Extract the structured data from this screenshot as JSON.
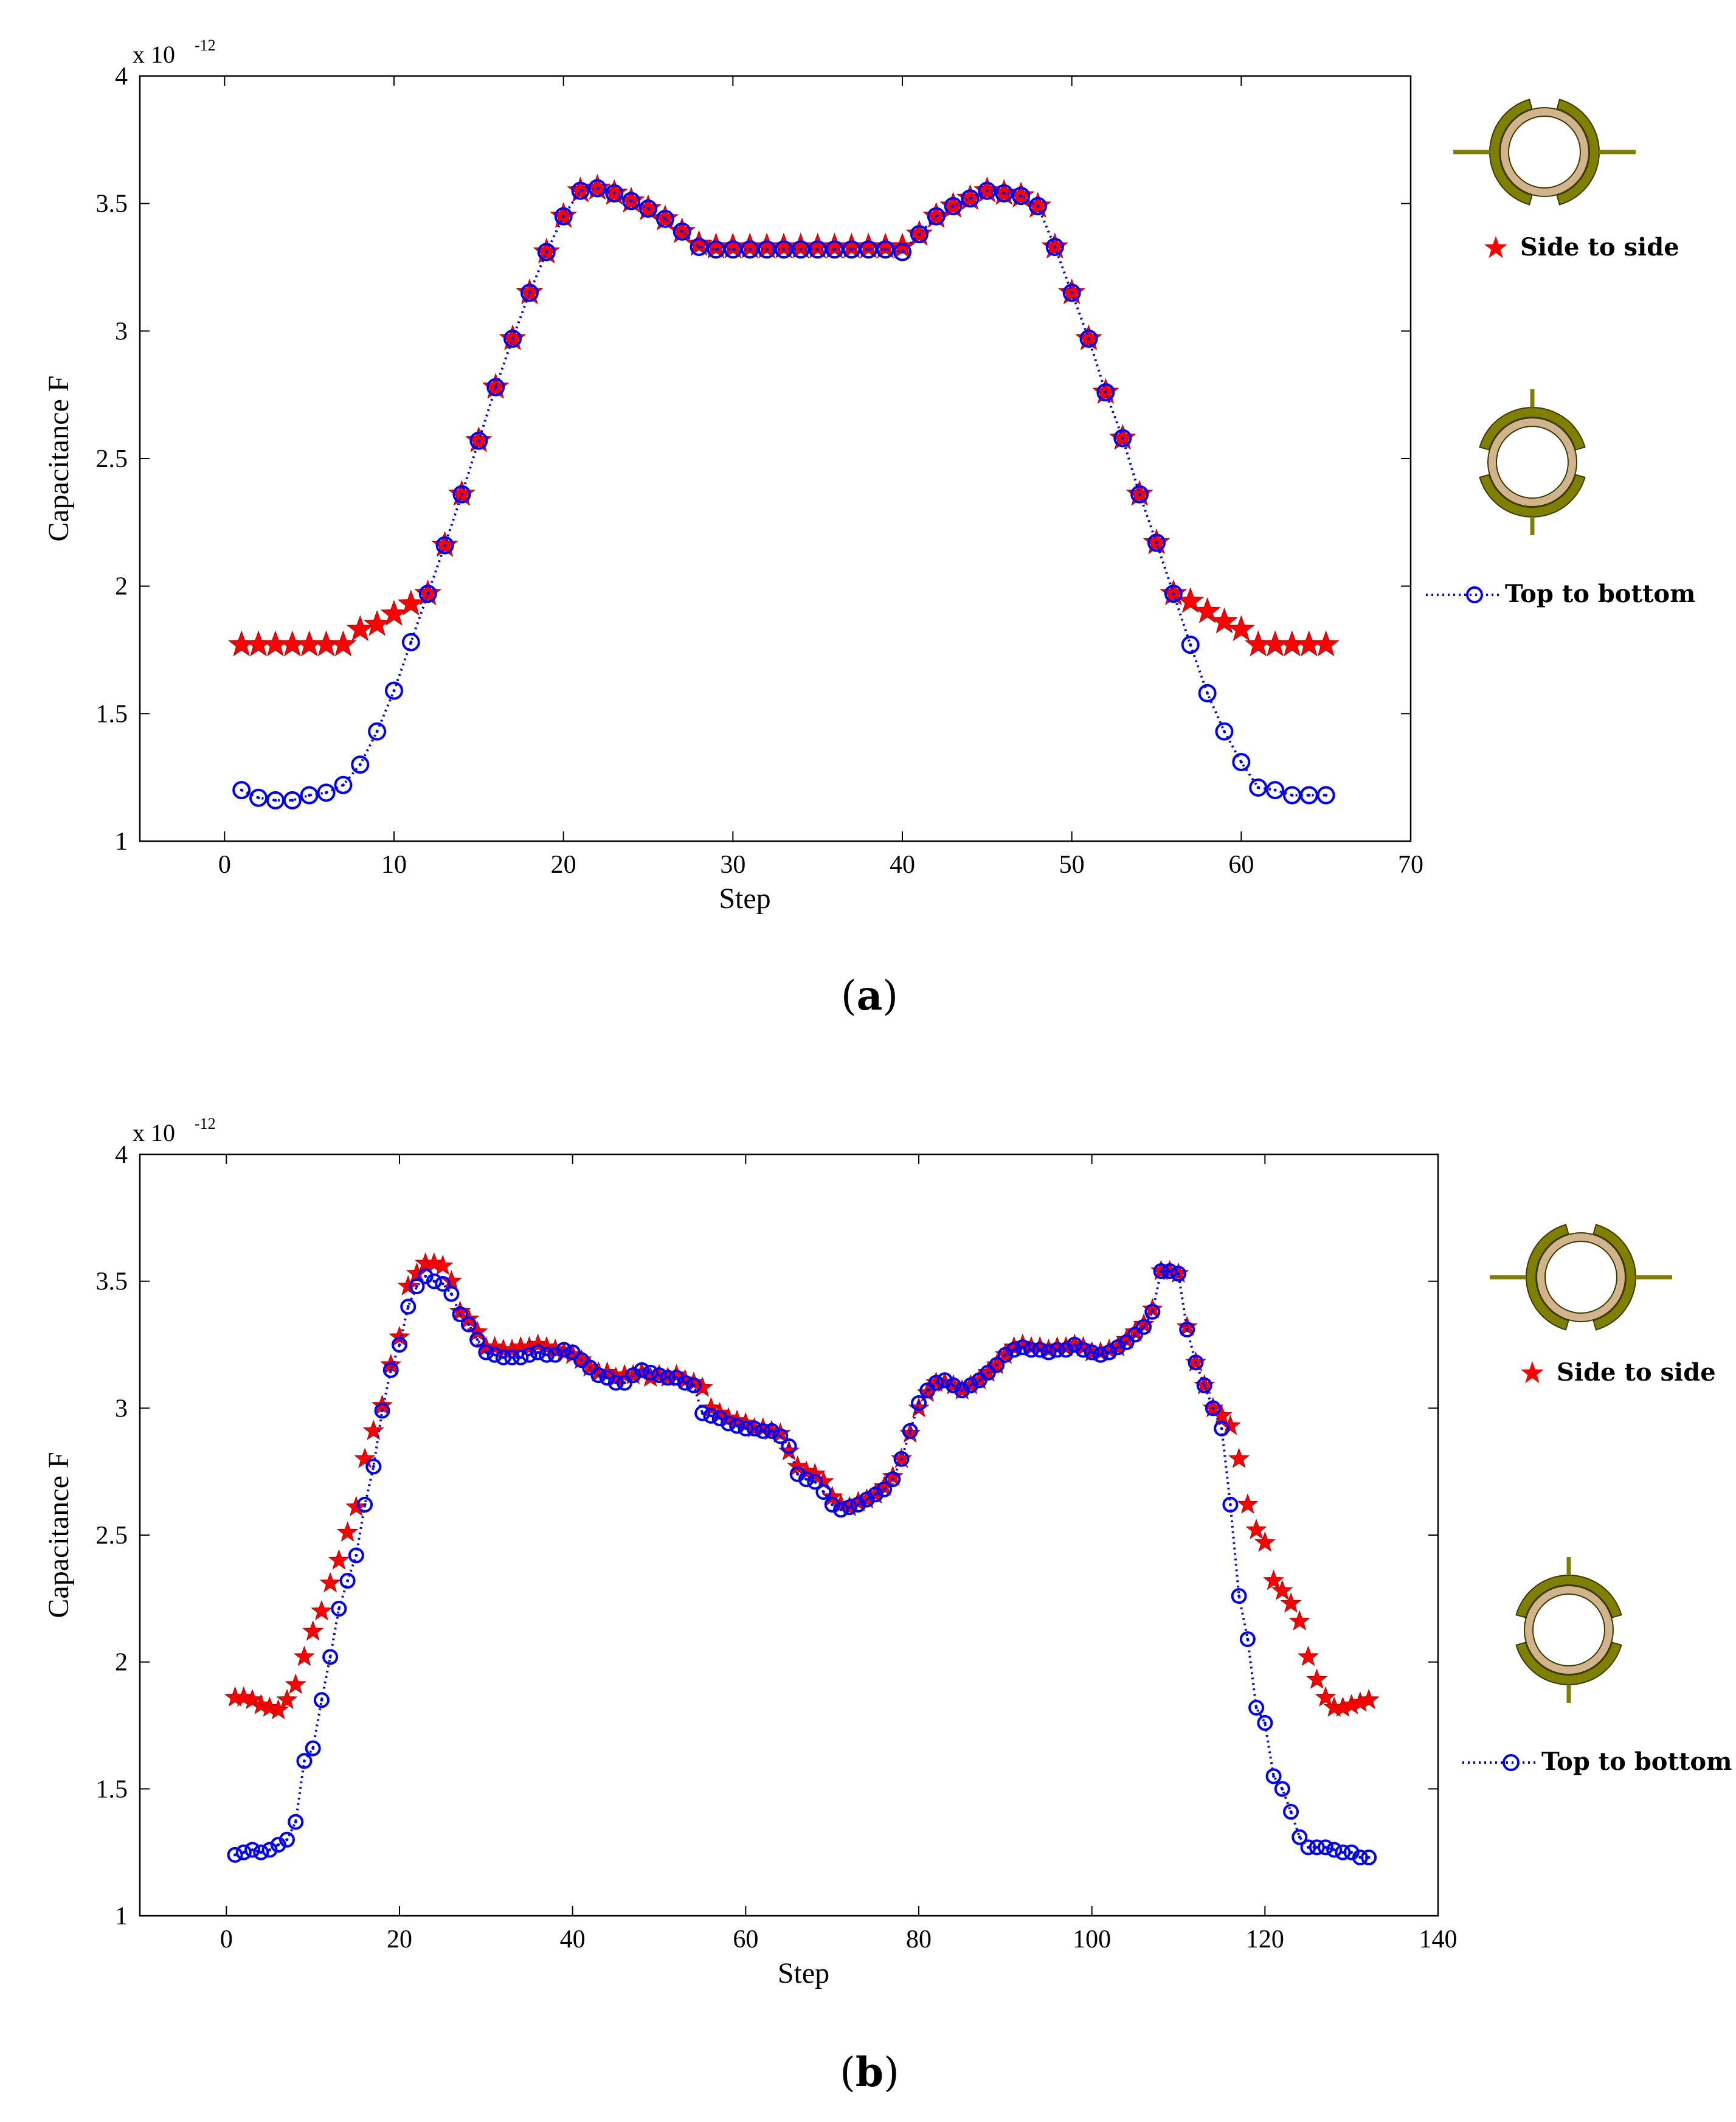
{
  "colors": {
    "side_to_side": "#ff0000",
    "top_to_bottom": "#0000ff",
    "electrode": "#808000",
    "pipe_ring": "#d2b48c",
    "axis": "#000000"
  },
  "chart_data": [
    {
      "type": "scatter",
      "panel_caption": {
        "open": "(",
        "letter": "a",
        "close": ")"
      },
      "title": "",
      "xlabel": "Step",
      "ylabel": "Capacitance F",
      "y_multiplier": {
        "base": "x 10",
        "exponent": "-12"
      },
      "xlim": [
        -5,
        70
      ],
      "ylim": [
        1,
        4
      ],
      "xticks": [
        0,
        10,
        20,
        30,
        40,
        50,
        60,
        70
      ],
      "yticks": [
        1,
        1.5,
        2,
        2.5,
        3,
        3.5,
        4
      ],
      "xtick_labels": [
        "0",
        "10",
        "20",
        "30",
        "40",
        "50",
        "60",
        "70"
      ],
      "ytick_labels": [
        "1",
        "1.5",
        "2",
        "2.5",
        "3",
        "3.5",
        "4"
      ],
      "grid": false,
      "series": [
        {
          "name": "Side to side",
          "marker": "star",
          "line": "none",
          "color": "#ff0000",
          "x": [
            1,
            2,
            3,
            4,
            5,
            6,
            7,
            8,
            9,
            10,
            11,
            12,
            13,
            14,
            15,
            16,
            17,
            18,
            19,
            20,
            21,
            22,
            23,
            24,
            25,
            26,
            27,
            28,
            29,
            30,
            31,
            32,
            33,
            34,
            35,
            36,
            37,
            38,
            39,
            40,
            41,
            42,
            43,
            44,
            45,
            46,
            47,
            48,
            49,
            50,
            51,
            52,
            53,
            54,
            55,
            56,
            57,
            58,
            59,
            60,
            61,
            62,
            63,
            64,
            65
          ],
          "values": [
            1.77,
            1.77,
            1.77,
            1.77,
            1.77,
            1.77,
            1.77,
            1.83,
            1.85,
            1.89,
            1.93,
            1.97,
            2.16,
            2.36,
            2.57,
            2.78,
            2.97,
            3.15,
            3.31,
            3.45,
            3.55,
            3.56,
            3.54,
            3.51,
            3.48,
            3.44,
            3.39,
            3.34,
            3.33,
            3.33,
            3.33,
            3.33,
            3.33,
            3.33,
            3.33,
            3.33,
            3.33,
            3.33,
            3.33,
            3.33,
            3.38,
            3.45,
            3.49,
            3.52,
            3.55,
            3.54,
            3.53,
            3.49,
            3.33,
            3.15,
            2.97,
            2.76,
            2.58,
            2.36,
            2.17,
            1.97,
            1.94,
            1.9,
            1.86,
            1.83,
            1.77,
            1.77,
            1.77,
            1.77,
            1.77
          ]
        },
        {
          "name": "Top to bottom",
          "marker": "circle",
          "line": "dotted",
          "color": "#0000ff",
          "x": [
            1,
            2,
            3,
            4,
            5,
            6,
            7,
            8,
            9,
            10,
            11,
            12,
            13,
            14,
            15,
            16,
            17,
            18,
            19,
            20,
            21,
            22,
            23,
            24,
            25,
            26,
            27,
            28,
            29,
            30,
            31,
            32,
            33,
            34,
            35,
            36,
            37,
            38,
            39,
            40,
            41,
            42,
            43,
            44,
            45,
            46,
            47,
            48,
            49,
            50,
            51,
            52,
            53,
            54,
            55,
            56,
            57,
            58,
            59,
            60,
            61,
            62,
            63,
            64,
            65
          ],
          "values": [
            1.2,
            1.17,
            1.16,
            1.16,
            1.18,
            1.19,
            1.22,
            1.3,
            1.43,
            1.59,
            1.78,
            1.97,
            2.16,
            2.36,
            2.57,
            2.78,
            2.97,
            3.15,
            3.31,
            3.45,
            3.55,
            3.56,
            3.54,
            3.51,
            3.48,
            3.44,
            3.39,
            3.33,
            3.32,
            3.32,
            3.32,
            3.32,
            3.32,
            3.32,
            3.32,
            3.32,
            3.32,
            3.32,
            3.32,
            3.31,
            3.38,
            3.45,
            3.49,
            3.52,
            3.55,
            3.54,
            3.53,
            3.49,
            3.33,
            3.15,
            2.97,
            2.76,
            2.58,
            2.36,
            2.17,
            1.97,
            1.77,
            1.58,
            1.43,
            1.31,
            1.21,
            1.2,
            1.18,
            1.18,
            1.18
          ]
        }
      ],
      "legend": [
        {
          "label": "Side to side",
          "marker": "star",
          "electrodes": "side"
        },
        {
          "label": "Top to bottom",
          "marker": "circle",
          "electrodes": "top-bottom"
        }
      ],
      "legend_placement": "right, outside plot"
    },
    {
      "type": "scatter",
      "panel_caption": {
        "open": "(",
        "letter": "b",
        "close": ")"
      },
      "title": "",
      "xlabel": "Step",
      "ylabel": "Capacitance F",
      "y_multiplier": {
        "base": "x 10",
        "exponent": "-12"
      },
      "xlim": [
        -10,
        140
      ],
      "ylim": [
        1,
        4
      ],
      "xticks": [
        0,
        20,
        40,
        60,
        80,
        100,
        120,
        140
      ],
      "yticks": [
        1,
        1.5,
        2,
        2.5,
        3,
        3.5,
        4
      ],
      "xtick_labels": [
        "0",
        "20",
        "40",
        "60",
        "80",
        "100",
        "120",
        "140"
      ],
      "ytick_labels": [
        "1",
        "1.5",
        "2",
        "2.5",
        "3",
        "3.5",
        "4"
      ],
      "grid": false,
      "series": [
        {
          "name": "Side to side",
          "marker": "star",
          "line": "none",
          "color": "#ff0000",
          "x": [
            1,
            2,
            3,
            4,
            5,
            6,
            7,
            8,
            9,
            10,
            11,
            12,
            13,
            14,
            15,
            16,
            17,
            18,
            19,
            20,
            21,
            22,
            23,
            24,
            25,
            26,
            27,
            28,
            29,
            30,
            31,
            32,
            33,
            34,
            35,
            36,
            37,
            38,
            39,
            40,
            41,
            42,
            43,
            44,
            45,
            46,
            47,
            48,
            49,
            50,
            51,
            52,
            53,
            54,
            55,
            56,
            57,
            58,
            59,
            60,
            61,
            62,
            63,
            64,
            65,
            66,
            67,
            68,
            69,
            70,
            71,
            72,
            73,
            74,
            75,
            76,
            77,
            78,
            79,
            80,
            81,
            82,
            83,
            84,
            85,
            86,
            87,
            88,
            89,
            90,
            91,
            92,
            93,
            94,
            95,
            96,
            97,
            98,
            99,
            100,
            101,
            102,
            103,
            104,
            105,
            106,
            107,
            108,
            109,
            110,
            111,
            112,
            113,
            114,
            115,
            116,
            117,
            118,
            119,
            120,
            121,
            122,
            123,
            124,
            125,
            126,
            127,
            128,
            129,
            130,
            131,
            132
          ],
          "values": [
            1.86,
            1.86,
            1.85,
            1.83,
            1.82,
            1.81,
            1.85,
            1.91,
            2.02,
            2.12,
            2.2,
            2.31,
            2.4,
            2.51,
            2.61,
            2.8,
            2.91,
            3.01,
            3.17,
            3.28,
            3.48,
            3.53,
            3.57,
            3.57,
            3.56,
            3.5,
            3.38,
            3.35,
            3.3,
            3.24,
            3.24,
            3.23,
            3.23,
            3.24,
            3.24,
            3.25,
            3.24,
            3.23,
            3.22,
            3.21,
            3.19,
            3.16,
            3.14,
            3.14,
            3.12,
            3.13,
            3.13,
            3.14,
            3.12,
            3.13,
            3.12,
            3.13,
            3.11,
            3.1,
            3.08,
            3.0,
            2.98,
            2.96,
            2.95,
            2.94,
            2.92,
            2.92,
            2.91,
            2.9,
            2.83,
            2.77,
            2.75,
            2.74,
            2.71,
            2.65,
            2.62,
            2.61,
            2.63,
            2.64,
            2.66,
            2.69,
            2.73,
            2.8,
            2.9,
            3.0,
            3.06,
            3.1,
            3.1,
            3.09,
            3.07,
            3.09,
            3.11,
            3.14,
            3.17,
            3.21,
            3.24,
            3.25,
            3.24,
            3.24,
            3.23,
            3.24,
            3.24,
            3.25,
            3.24,
            3.22,
            3.22,
            3.23,
            3.24,
            3.27,
            3.3,
            3.33,
            3.39,
            3.54,
            3.54,
            3.53,
            3.32,
            3.18,
            3.09,
            3.0,
            2.97,
            2.93,
            2.8,
            2.62,
            2.52,
            2.47,
            2.32,
            2.28,
            2.23,
            2.16,
            2.02,
            1.93,
            1.86,
            1.82,
            1.82,
            1.83,
            1.84,
            1.85
          ]
        },
        {
          "name": "Top to bottom",
          "marker": "circle",
          "line": "dotted",
          "color": "#0000ff",
          "x": [
            1,
            2,
            3,
            4,
            5,
            6,
            7,
            8,
            9,
            10,
            11,
            12,
            13,
            14,
            15,
            16,
            17,
            18,
            19,
            20,
            21,
            22,
            23,
            24,
            25,
            26,
            27,
            28,
            29,
            30,
            31,
            32,
            33,
            34,
            35,
            36,
            37,
            38,
            39,
            40,
            41,
            42,
            43,
            44,
            45,
            46,
            47,
            48,
            49,
            50,
            51,
            52,
            53,
            54,
            55,
            56,
            57,
            58,
            59,
            60,
            61,
            62,
            63,
            64,
            65,
            66,
            67,
            68,
            69,
            70,
            71,
            72,
            73,
            74,
            75,
            76,
            77,
            78,
            79,
            80,
            81,
            82,
            83,
            84,
            85,
            86,
            87,
            88,
            89,
            90,
            91,
            92,
            93,
            94,
            95,
            96,
            97,
            98,
            99,
            100,
            101,
            102,
            103,
            104,
            105,
            106,
            107,
            108,
            109,
            110,
            111,
            112,
            113,
            114,
            115,
            116,
            117,
            118,
            119,
            120,
            121,
            122,
            123,
            124,
            125,
            126,
            127,
            128,
            129,
            130,
            131,
            132
          ],
          "values": [
            1.24,
            1.25,
            1.26,
            1.25,
            1.26,
            1.28,
            1.3,
            1.37,
            1.61,
            1.66,
            1.85,
            2.02,
            2.21,
            2.32,
            2.42,
            2.62,
            2.77,
            2.99,
            3.15,
            3.25,
            3.4,
            3.48,
            3.52,
            3.5,
            3.49,
            3.45,
            3.37,
            3.33,
            3.27,
            3.22,
            3.21,
            3.2,
            3.2,
            3.2,
            3.21,
            3.22,
            3.21,
            3.21,
            3.23,
            3.22,
            3.19,
            3.16,
            3.13,
            3.12,
            3.1,
            3.1,
            3.13,
            3.15,
            3.14,
            3.13,
            3.12,
            3.12,
            3.1,
            3.09,
            2.98,
            2.97,
            2.96,
            2.94,
            2.93,
            2.92,
            2.92,
            2.91,
            2.91,
            2.89,
            2.85,
            2.74,
            2.72,
            2.71,
            2.67,
            2.62,
            2.6,
            2.61,
            2.62,
            2.64,
            2.66,
            2.68,
            2.72,
            2.8,
            2.91,
            3.02,
            3.07,
            3.1,
            3.11,
            3.09,
            3.07,
            3.09,
            3.11,
            3.14,
            3.17,
            3.21,
            3.23,
            3.24,
            3.23,
            3.23,
            3.22,
            3.23,
            3.23,
            3.25,
            3.23,
            3.22,
            3.21,
            3.22,
            3.24,
            3.26,
            3.29,
            3.32,
            3.38,
            3.54,
            3.54,
            3.53,
            3.31,
            3.18,
            3.09,
            3.0,
            2.92,
            2.62,
            2.26,
            2.09,
            1.82,
            1.76,
            1.55,
            1.5,
            1.41,
            1.31,
            1.27,
            1.27,
            1.27,
            1.26,
            1.25,
            1.25,
            1.23,
            1.23
          ]
        }
      ],
      "legend": [
        {
          "label": "Side to side",
          "marker": "star",
          "electrodes": "side"
        },
        {
          "label": "Top to bottom",
          "marker": "circle",
          "electrodes": "top-bottom"
        }
      ],
      "legend_placement": "right, outside plot"
    }
  ]
}
